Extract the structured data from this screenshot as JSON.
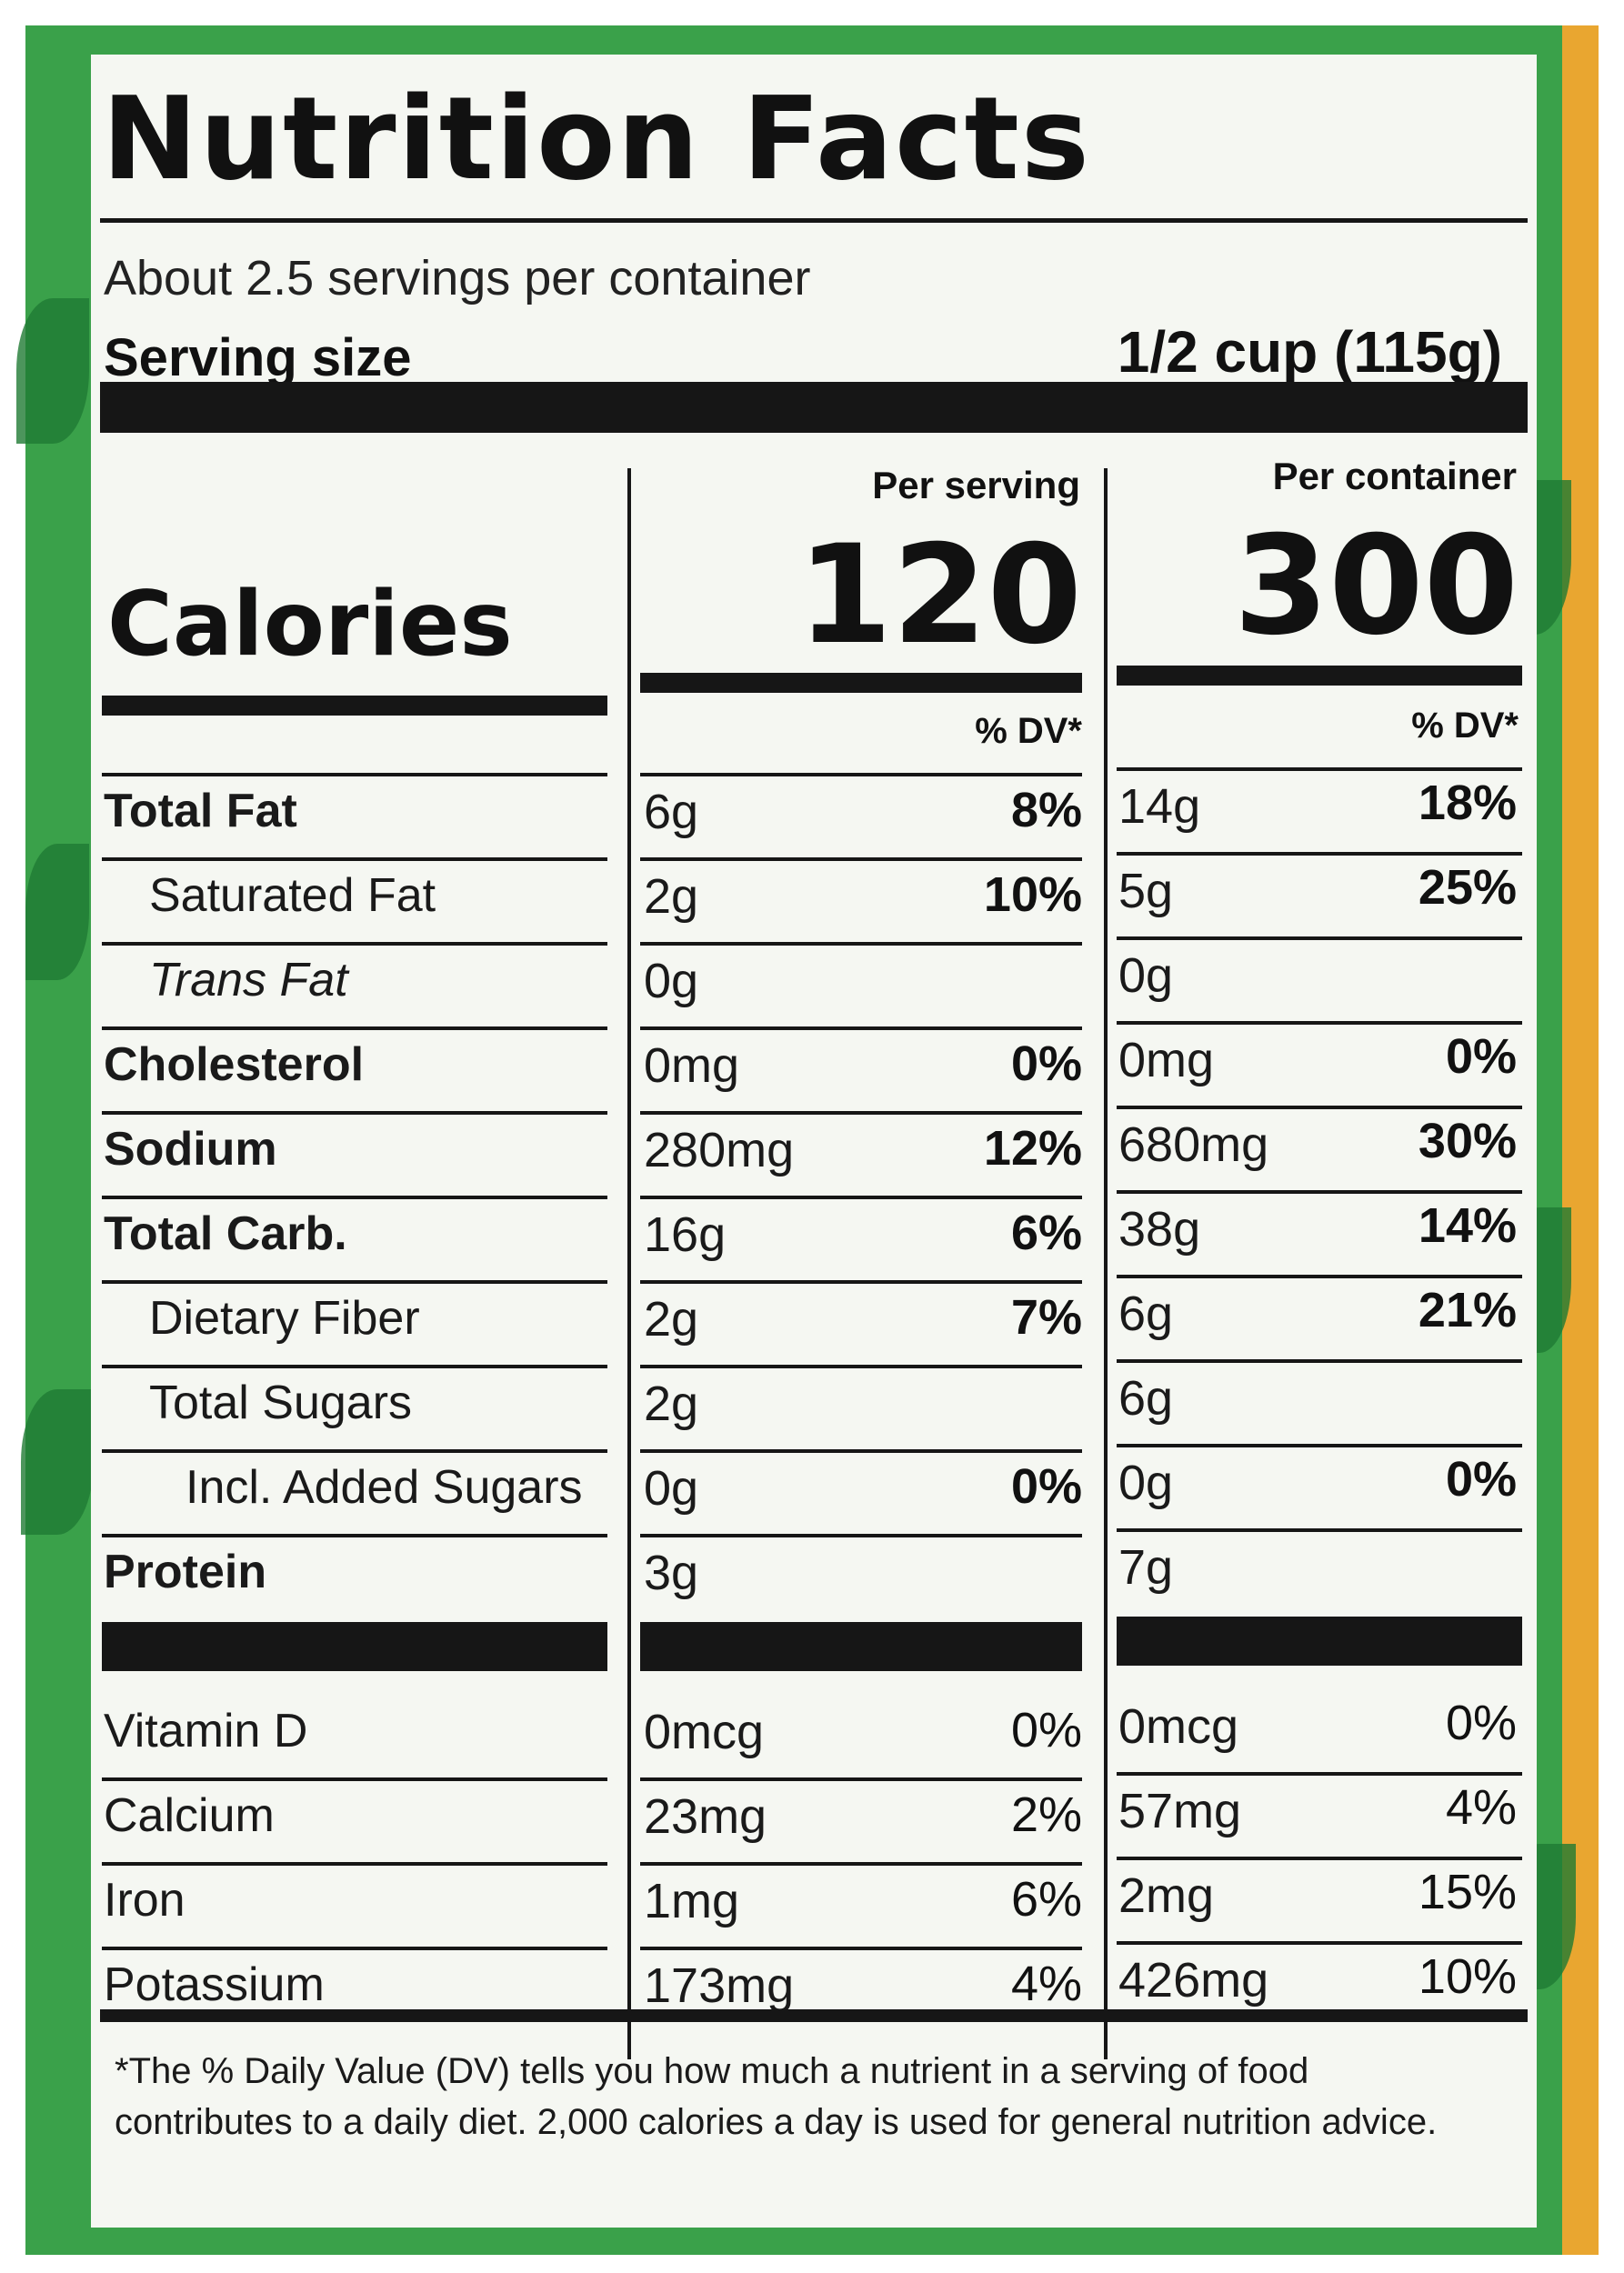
{
  "title": "Nutrition Facts",
  "servings_per_container": "About 2.5 servings per container",
  "serving_size_label": "Serving size",
  "serving_size_value": "1/2 cup (115g)",
  "per_serving_label": "Per serving",
  "per_container_label": "Per container",
  "calories_label": "Calories",
  "calories_per_serving": "120",
  "calories_per_container": "300",
  "dv_header": "% DV*",
  "nutrients": [
    {
      "name": "Total Fat",
      "serving_amount": "6g",
      "serving_dv": "8%",
      "container_amount": "14g",
      "container_dv": "18%"
    },
    {
      "name": "Saturated Fat",
      "serving_amount": "2g",
      "serving_dv": "10%",
      "container_amount": "5g",
      "container_dv": "25%"
    },
    {
      "name": "Trans Fat",
      "serving_amount": "0g",
      "serving_dv": "",
      "container_amount": "0g",
      "container_dv": ""
    },
    {
      "name": "Cholesterol",
      "serving_amount": "0mg",
      "serving_dv": "0%",
      "container_amount": "0mg",
      "container_dv": "0%"
    },
    {
      "name": "Sodium",
      "serving_amount": "280mg",
      "serving_dv": "12%",
      "container_amount": "680mg",
      "container_dv": "30%"
    },
    {
      "name": "Total Carb.",
      "serving_amount": "16g",
      "serving_dv": "6%",
      "container_amount": "38g",
      "container_dv": "14%"
    },
    {
      "name": "Dietary Fiber",
      "serving_amount": "2g",
      "serving_dv": "7%",
      "container_amount": "6g",
      "container_dv": "21%"
    },
    {
      "name": "Total Sugars",
      "serving_amount": "2g",
      "serving_dv": "",
      "container_amount": "6g",
      "container_dv": ""
    },
    {
      "name": "Incl. Added Sugars",
      "serving_amount": "0g",
      "serving_dv": "0%",
      "container_amount": "0g",
      "container_dv": "0%"
    },
    {
      "name": "Protein",
      "serving_amount": "3g",
      "serving_dv": "",
      "container_amount": "7g",
      "container_dv": ""
    }
  ],
  "vitamins": [
    {
      "name": "Vitamin D",
      "serving_amount": "0mcg",
      "serving_dv": "0%",
      "container_amount": "0mcg",
      "container_dv": "0%"
    },
    {
      "name": "Calcium",
      "serving_amount": "23mg",
      "serving_dv": "2%",
      "container_amount": "57mg",
      "container_dv": "4%"
    },
    {
      "name": "Iron",
      "serving_amount": "1mg",
      "serving_dv": "6%",
      "container_amount": "2mg",
      "container_dv": "15%"
    },
    {
      "name": "Potassium",
      "serving_amount": "173mg",
      "serving_dv": "4%",
      "container_amount": "426mg",
      "container_dv": "10%"
    }
  ],
  "footnote": "*The % Daily Value (DV) tells you how much a nutrient in a serving of food contributes to a daily diet. 2,000 calories a day is used for general nutrition advice."
}
